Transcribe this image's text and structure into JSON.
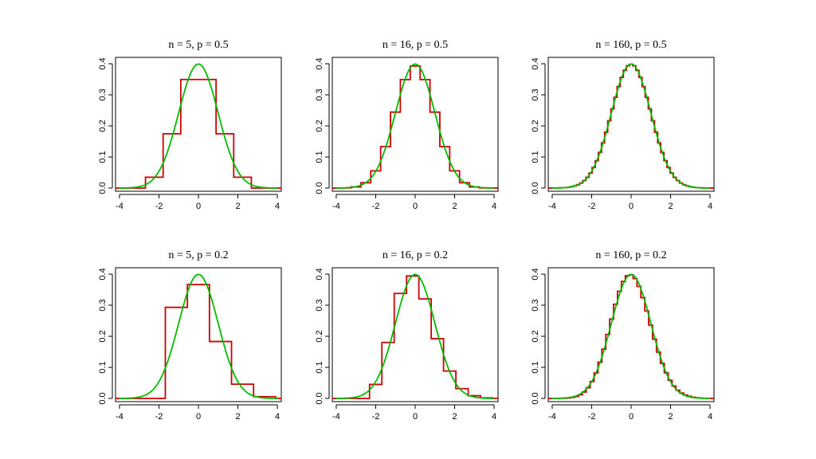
{
  "chart_data": [
    {
      "type": "line",
      "title": "n = 5, p = 0.5",
      "n": 5,
      "p": 0.5,
      "xlim": [
        -4.2,
        4.2
      ],
      "ylim": [
        0,
        0.4
      ],
      "xticks": [
        "-4",
        "-2",
        "0",
        "2",
        "4"
      ],
      "yticks": [
        "0.0",
        "0.1",
        "0.2",
        "0.3",
        "0.4"
      ],
      "series": [
        {
          "values": "histogram",
          "style": "step",
          "color": "#cc0000"
        },
        {
          "values": "normal density",
          "style": "line",
          "color": "#00bb00"
        }
      ]
    },
    {
      "type": "line",
      "title": "n = 16, p = 0.5",
      "n": 16,
      "p": 0.5,
      "xlim": [
        -4.2,
        4.2
      ],
      "ylim": [
        0,
        0.4
      ],
      "xticks": [
        "-4",
        "-2",
        "0",
        "2",
        "4"
      ],
      "yticks": [
        "0.0",
        "0.1",
        "0.2",
        "0.3",
        "0.4"
      ],
      "series": [
        {
          "values": "histogram",
          "style": "step",
          "color": "#cc0000"
        },
        {
          "values": "normal density",
          "style": "line",
          "color": "#00bb00"
        }
      ]
    },
    {
      "type": "line",
      "title": "n = 160, p = 0.5",
      "n": 160,
      "p": 0.5,
      "xlim": [
        -4.2,
        4.2
      ],
      "ylim": [
        0,
        0.4
      ],
      "xticks": [
        "-4",
        "-2",
        "0",
        "2",
        "4"
      ],
      "yticks": [
        "0.0",
        "0.1",
        "0.2",
        "0.3",
        "0.4"
      ],
      "series": [
        {
          "values": "histogram",
          "style": "step",
          "color": "#cc0000"
        },
        {
          "values": "normal density",
          "style": "line",
          "color": "#00bb00"
        }
      ]
    },
    {
      "type": "line",
      "title": "n = 5, p = 0.2",
      "n": 5,
      "p": 0.2,
      "xlim": [
        -4.2,
        4.2
      ],
      "ylim": [
        0,
        0.4
      ],
      "xticks": [
        "-4",
        "-2",
        "0",
        "2",
        "4"
      ],
      "yticks": [
        "0.0",
        "0.1",
        "0.2",
        "0.3",
        "0.4"
      ],
      "series": [
        {
          "values": "histogram",
          "style": "step",
          "color": "#cc0000"
        },
        {
          "values": "normal density",
          "style": "line",
          "color": "#00bb00"
        }
      ]
    },
    {
      "type": "line",
      "title": "n = 16, p = 0.2",
      "n": 16,
      "p": 0.2,
      "xlim": [
        -4.2,
        4.2
      ],
      "ylim": [
        0,
        0.4
      ],
      "xticks": [
        "-4",
        "-2",
        "0",
        "2",
        "4"
      ],
      "yticks": [
        "0.0",
        "0.1",
        "0.2",
        "0.3",
        "0.4"
      ],
      "series": [
        {
          "values": "histogram",
          "style": "step",
          "color": "#cc0000"
        },
        {
          "values": "normal density",
          "style": "line",
          "color": "#00bb00"
        }
      ]
    },
    {
      "type": "line",
      "title": "n = 160, p = 0.2",
      "n": 160,
      "p": 0.2,
      "xlim": [
        -4.2,
        4.2
      ],
      "ylim": [
        0,
        0.4
      ],
      "xticks": [
        "-4",
        "-2",
        "0",
        "2",
        "4"
      ],
      "yticks": [
        "0.0",
        "0.1",
        "0.2",
        "0.3",
        "0.4"
      ],
      "series": [
        {
          "values": "histogram",
          "style": "step",
          "color": "#cc0000"
        },
        {
          "values": "normal density",
          "style": "line",
          "color": "#00bb00"
        }
      ]
    }
  ]
}
